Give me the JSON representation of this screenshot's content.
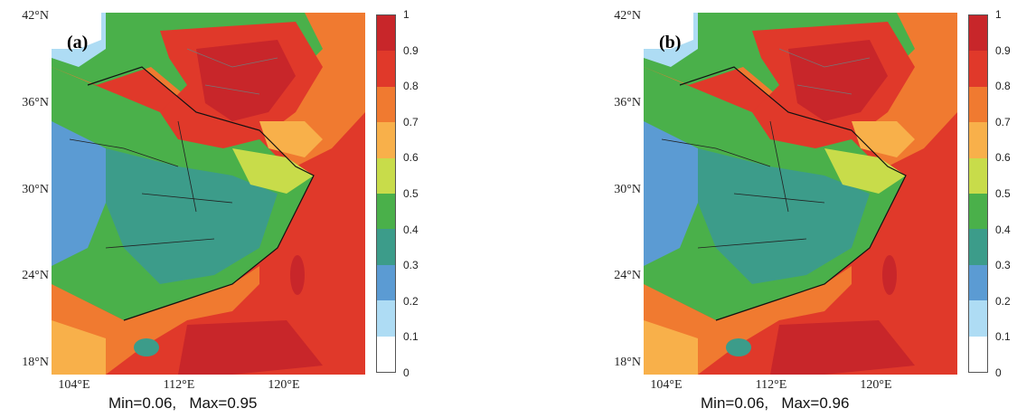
{
  "colorbar": {
    "ticks": [
      "1",
      "0.9",
      "0.8",
      "0.7",
      "0.6",
      "0.5",
      "0.4",
      "0.3",
      "0.2",
      "0.1",
      "0"
    ],
    "colors": [
      "#ffffff",
      "#aedcf4",
      "#5b9bd3",
      "#3c9c8a",
      "#4ab04a",
      "#c8dc4a",
      "#f8b04a",
      "#f07a30",
      "#e0392a",
      "#c8262a"
    ]
  },
  "axes": {
    "lat_labels": [
      "42°N",
      "36°N",
      "30°N",
      "24°N",
      "18°N"
    ],
    "lon_labels": [
      "104°E",
      "112°E",
      "120°E"
    ]
  },
  "panels": [
    {
      "tag": "(a)",
      "min": "Min=0.06,",
      "max": "Max=0.95"
    },
    {
      "tag": "(b)",
      "min": "Min=0.06,",
      "max": "Max=0.96"
    }
  ]
}
